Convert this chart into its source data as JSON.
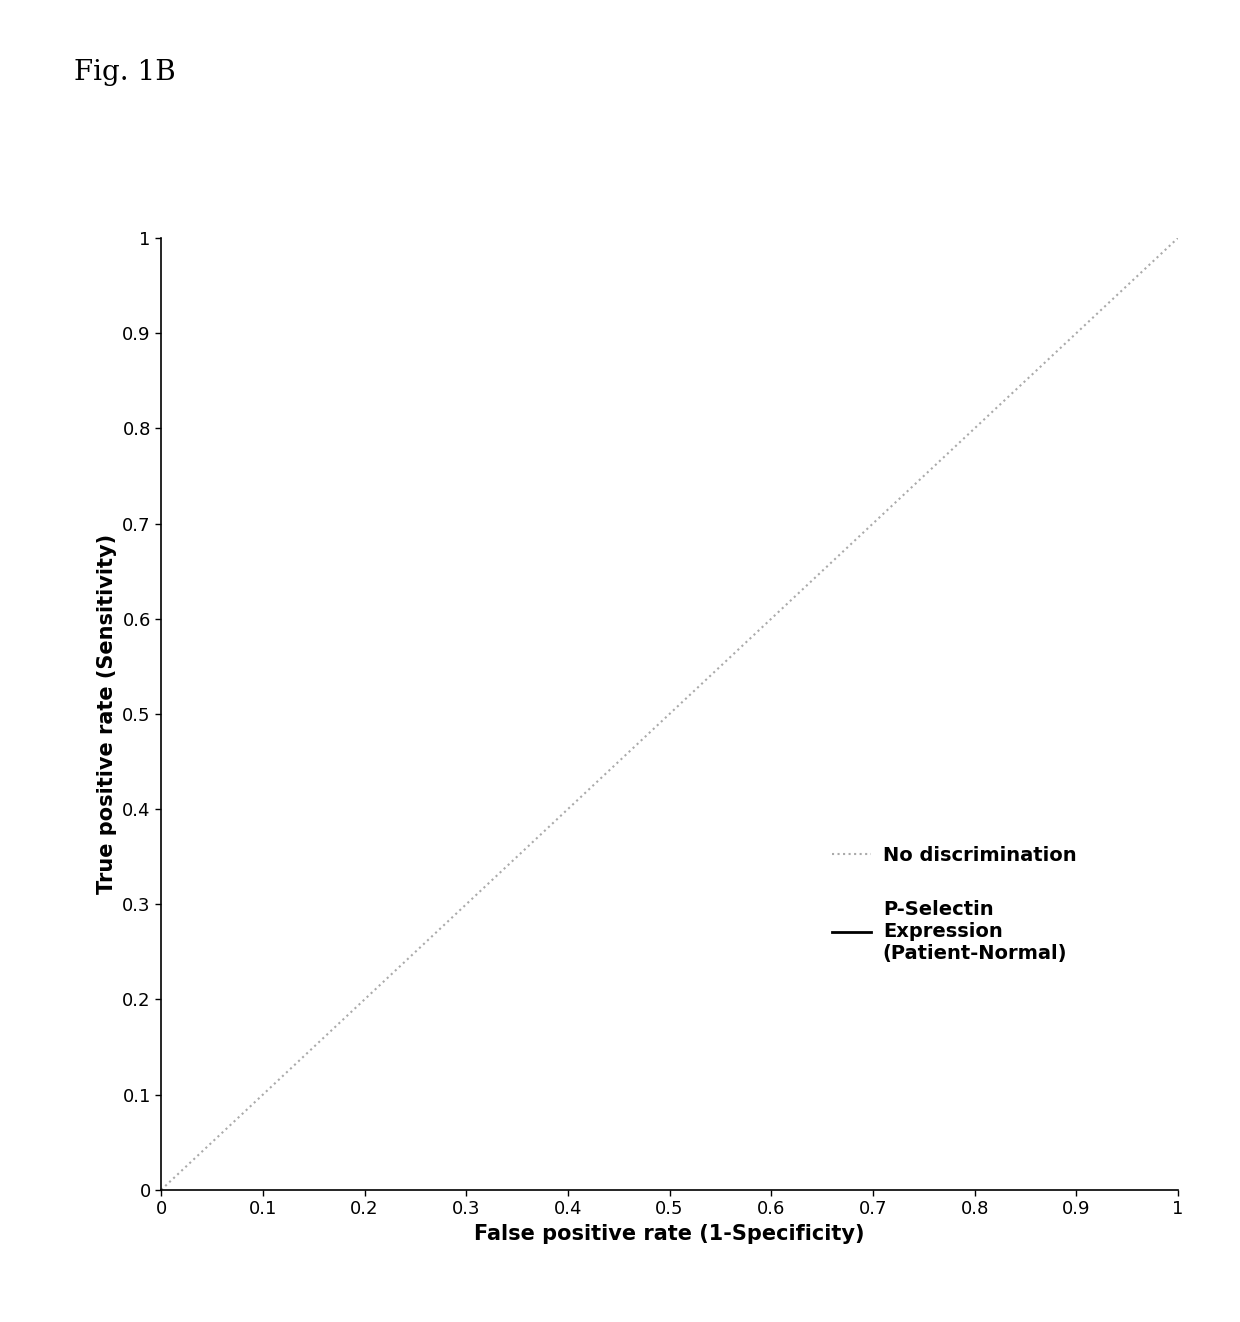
{
  "fig_label": "Fig. 1B",
  "xlabel": "False positive rate (1-Specificity)",
  "ylabel": "True positive rate (Sensitivity)",
  "xlim": [
    0,
    1
  ],
  "ylim": [
    0,
    1
  ],
  "xticks": [
    0,
    0.1,
    0.2,
    0.3,
    0.4,
    0.5,
    0.6,
    0.7,
    0.8,
    0.9,
    1
  ],
  "yticks": [
    0,
    0.1,
    0.2,
    0.3,
    0.4,
    0.5,
    0.6,
    0.7,
    0.8,
    0.9,
    1
  ],
  "diagonal_color": "#aaaaaa",
  "diagonal_linestyle": "dotted",
  "diagonal_linewidth": 1.5,
  "pselectin_color": "#000000",
  "pselectin_linestyle": "solid",
  "pselectin_linewidth": 2.0,
  "legend_label_1": "No discrimination",
  "legend_label_2": "P-Selectin\nExpression\n(Patient-Normal)",
  "background_color": "#ffffff",
  "fig_label_fontsize": 20,
  "axis_label_fontsize": 15,
  "tick_fontsize": 13,
  "legend_fontsize": 14
}
